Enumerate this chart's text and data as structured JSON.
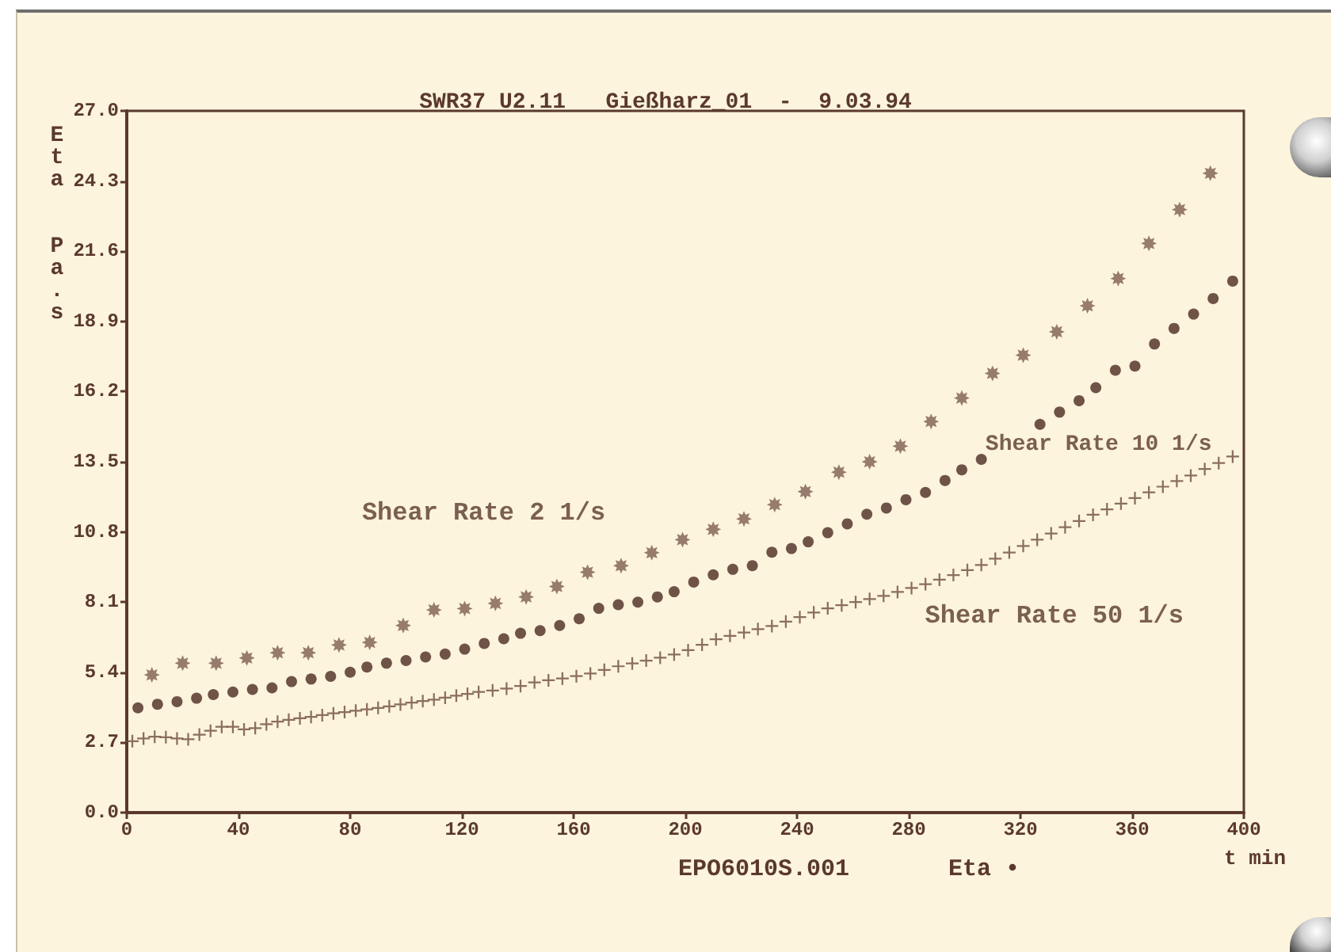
{
  "chart_data": {
    "type": "scatter",
    "title": "SWR37 U2.11   Gießharz_01  -  9.03.94",
    "xlabel": "t min",
    "ylabel": "Eta Pa.s",
    "annotations": [
      "EPO6010S.001",
      "Eta •"
    ],
    "xlim": [
      0,
      400
    ],
    "xticks": [
      0,
      40,
      80,
      120,
      160,
      200,
      240,
      280,
      320,
      360,
      400
    ],
    "ylim": [
      0,
      27
    ],
    "yticks": [
      {
        "value": 0,
        "label": "0.0"
      },
      2.7,
      5.4,
      8.1,
      10.8,
      13.5,
      16.2,
      18.9,
      21.6,
      24.3,
      {
        "value": 27,
        "label": "27.0"
      }
    ],
    "grid": false,
    "series": [
      {
        "name": "Shear Rate 2 1/s",
        "color": "#7d5e50",
        "marker": "star",
        "x": [
          9,
          20,
          32,
          43,
          54,
          65,
          76,
          87,
          99,
          110,
          121,
          132,
          143,
          154,
          165,
          177,
          188,
          199,
          210,
          221,
          232,
          243,
          255,
          266,
          277,
          288,
          299,
          310,
          321,
          333,
          344,
          355,
          366,
          377,
          388
        ],
        "values": [
          5.3,
          5.75,
          5.75,
          5.95,
          6.15,
          6.15,
          6.45,
          6.55,
          7.2,
          7.8,
          7.85,
          8.05,
          8.3,
          8.7,
          9.25,
          9.5,
          10.0,
          10.5,
          10.9,
          11.3,
          11.85,
          12.35,
          13.1,
          13.5,
          14.1,
          15.05,
          15.95,
          16.9,
          17.6,
          18.5,
          19.5,
          20.55,
          21.9,
          23.2,
          24.6
        ]
      },
      {
        "name": "Shear Rate 10 1/s",
        "color": "#4b2b22",
        "marker": "circle",
        "x": [
          4,
          11,
          18,
          25,
          31,
          38,
          45,
          52,
          59,
          66,
          73,
          80,
          86,
          93,
          100,
          107,
          114,
          121,
          128,
          135,
          141,
          148,
          155,
          162,
          169,
          176,
          183,
          190,
          196,
          203,
          210,
          217,
          224,
          231,
          238,
          244,
          251,
          258,
          265,
          272,
          279,
          286,
          293,
          299,
          306,
          313,
          320,
          327,
          334,
          341,
          347,
          354,
          361,
          368,
          375,
          382,
          389,
          396
        ],
        "values": [
          4.03,
          4.17,
          4.27,
          4.4,
          4.54,
          4.64,
          4.74,
          4.8,
          5.04,
          5.14,
          5.24,
          5.4,
          5.6,
          5.75,
          5.85,
          5.99,
          6.1,
          6.29,
          6.51,
          6.69,
          6.9,
          7.0,
          7.2,
          7.46,
          7.86,
          8.0,
          8.1,
          8.3,
          8.5,
          8.87,
          9.15,
          9.36,
          9.5,
          10.02,
          10.16,
          10.42,
          10.77,
          11.11,
          11.48,
          11.72,
          12.04,
          12.32,
          12.78,
          13.19,
          13.59,
          null,
          null,
          14.94,
          15.41,
          15.85,
          16.35,
          17.02,
          17.18,
          18.03,
          18.63,
          19.18,
          19.78,
          20.45
        ]
      },
      {
        "name": "Shear Rate 50 1/s",
        "color": "#6e4c3e",
        "marker": "cross",
        "x": [
          2,
          6,
          10,
          14,
          18,
          22,
          26,
          30,
          34,
          38,
          42,
          46,
          50,
          54,
          58,
          62,
          66,
          70,
          74,
          78,
          82,
          86,
          90,
          94,
          98,
          102,
          106,
          110,
          114,
          118,
          122,
          126,
          131,
          136,
          141,
          146,
          151,
          156,
          161,
          166,
          171,
          176,
          181,
          186,
          191,
          196,
          201,
          206,
          211,
          216,
          221,
          226,
          231,
          236,
          241,
          246,
          251,
          256,
          261,
          266,
          271,
          276,
          281,
          286,
          291,
          296,
          301,
          306,
          311,
          316,
          321,
          326,
          331,
          336,
          341,
          346,
          351,
          356,
          361,
          366,
          371,
          376,
          381,
          386,
          391,
          396
        ],
        "values": [
          2.75,
          2.85,
          2.92,
          2.9,
          2.85,
          2.82,
          3.0,
          3.15,
          3.3,
          3.3,
          3.2,
          3.25,
          3.4,
          3.5,
          3.57,
          3.63,
          3.68,
          3.75,
          3.82,
          3.87,
          3.92,
          3.97,
          4.03,
          4.09,
          4.16,
          4.23,
          4.29,
          4.35,
          4.42,
          4.5,
          4.57,
          4.64,
          4.7,
          4.77,
          4.87,
          5.01,
          5.09,
          5.16,
          5.25,
          5.35,
          5.49,
          5.63,
          5.74,
          5.85,
          5.96,
          6.08,
          6.25,
          6.46,
          6.67,
          6.8,
          6.93,
          7.06,
          7.18,
          7.35,
          7.52,
          7.7,
          7.86,
          7.98,
          8.1,
          8.22,
          8.34,
          8.49,
          8.64,
          8.79,
          8.96,
          9.14,
          9.33,
          9.53,
          9.77,
          10.01,
          10.26,
          10.5,
          10.74,
          10.98,
          11.22,
          11.46,
          11.67,
          11.89,
          12.1,
          12.32,
          12.54,
          12.76,
          12.97,
          13.22,
          13.45,
          13.7
        ]
      }
    ]
  }
}
